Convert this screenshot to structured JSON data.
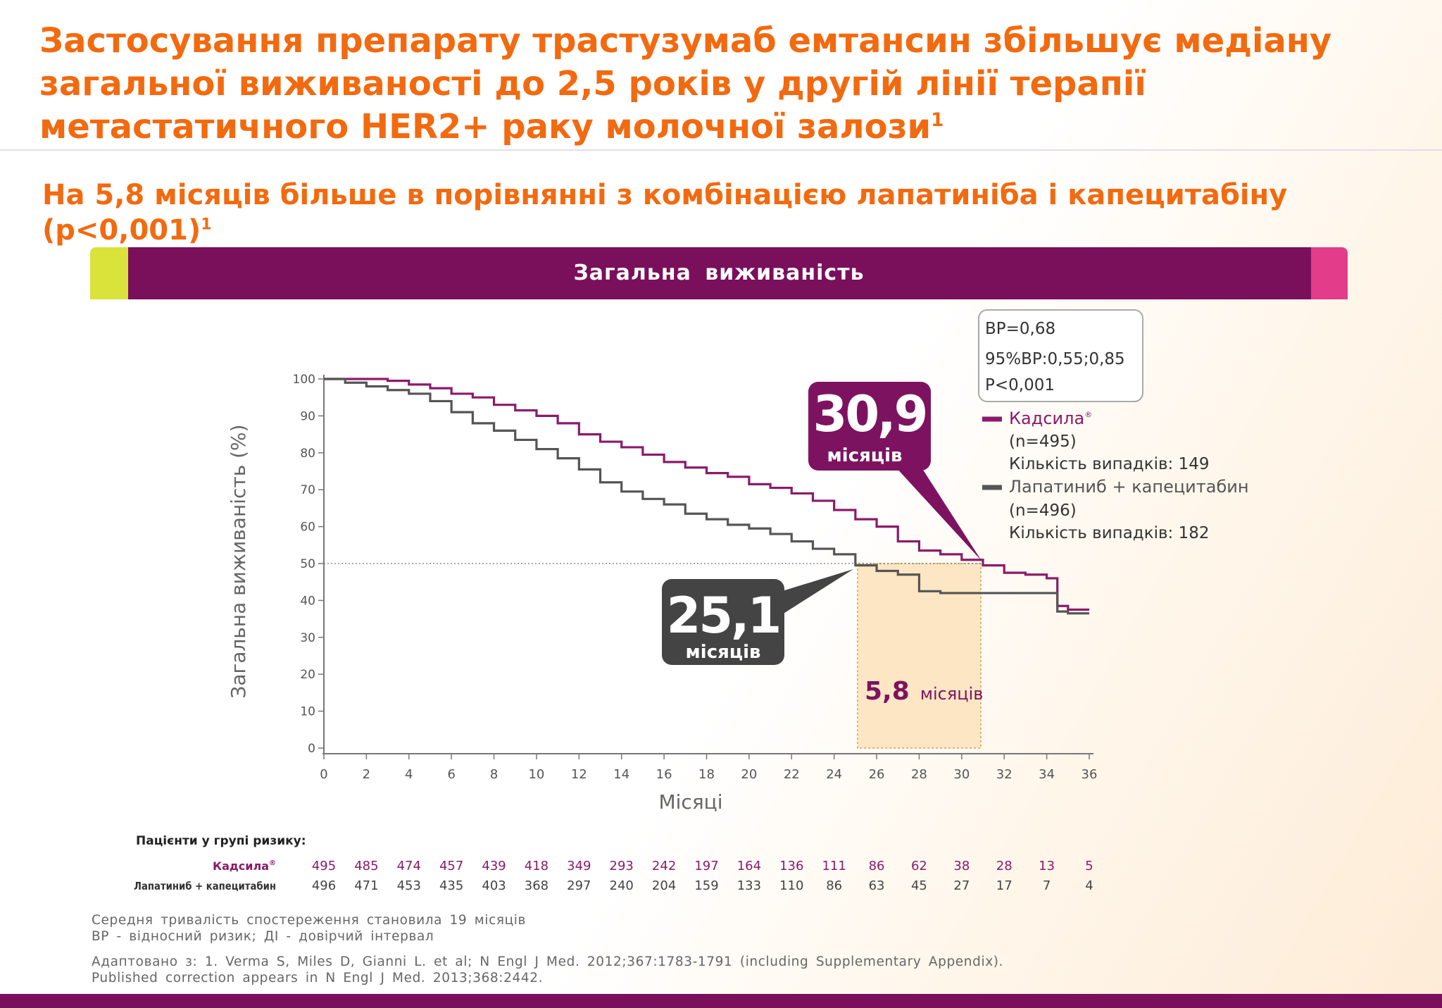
{
  "header": {
    "title_lines": [
      "Застосування препарату трастузумаб емтансин збільшує медіану",
      "загальної виживаності до 2,5 років у другій лінії терапії",
      "метастатичного HER2+ раку молочної залози"
    ],
    "title_sup": "1",
    "subtitle": "На 5,8 місяців більше в порівнянні з комбінацією лапатиніба і капецитабіну (p<0,001)",
    "subtitle_sup": "1"
  },
  "banner": {
    "label": "Загальна  виживаність"
  },
  "colors": {
    "orange": "#f26a10",
    "purple": "#8b1a6b",
    "grey": "#555555",
    "banner": "#7a0f5c",
    "highlight": "#fde6c4"
  },
  "stats_box": {
    "lines": [
      "ВР=0,68",
      "95%ВР:0,55;0,85",
      "P<0,001"
    ]
  },
  "callouts": {
    "kadsyla": {
      "value": "30,9",
      "unit": "місяців"
    },
    "lapatinib": {
      "value": "25,1",
      "unit": "місяців"
    },
    "difference": {
      "value": "5,8",
      "unit": "місяців"
    }
  },
  "chart_data": {
    "type": "line",
    "xlabel": "Місяці",
    "ylabel": "Загальна  виживаність  (%)",
    "xlim": [
      0,
      36
    ],
    "ylim": [
      0,
      100
    ],
    "x_ticks": [
      0,
      2,
      4,
      6,
      8,
      10,
      12,
      14,
      16,
      18,
      20,
      22,
      24,
      26,
      28,
      30,
      32,
      34,
      36
    ],
    "y_ticks": [
      0,
      10,
      20,
      30,
      40,
      50,
      60,
      70,
      80,
      90,
      100
    ],
    "reference_line_y": 50,
    "highlight_x_range": [
      25.1,
      30.9
    ],
    "legend_position": "right",
    "series": [
      {
        "name": "Кадсила",
        "legend_sup": "®",
        "legend_n": "(n=495)",
        "legend_events": "Кількість  випадків:  149",
        "color": "#8b1a6b",
        "x": [
          0,
          1,
          2,
          3,
          4,
          5,
          6,
          7,
          8,
          9,
          10,
          11,
          12,
          13,
          14,
          15,
          16,
          17,
          18,
          19,
          20,
          21,
          22,
          23,
          24,
          25,
          26,
          27,
          28,
          29,
          30,
          31,
          32,
          33,
          34,
          34.5,
          35,
          36
        ],
        "y": [
          100,
          100,
          100,
          99.5,
          98.5,
          97.5,
          96,
          95,
          93,
          91.5,
          90,
          88,
          85,
          83,
          81.5,
          79.5,
          77.5,
          76,
          74.5,
          73.5,
          71.5,
          70.5,
          69,
          67,
          64.5,
          62,
          60,
          56,
          53.5,
          52.5,
          51,
          49.5,
          47.5,
          47,
          46,
          38.5,
          37.5,
          37.5
        ]
      },
      {
        "name": "Лапатиниб  +  капецитабин",
        "legend_n": "(n=496)",
        "legend_events": "Кількість  випадків:  182",
        "color": "#555555",
        "x": [
          0,
          1,
          2,
          3,
          4,
          5,
          6,
          7,
          8,
          9,
          10,
          11,
          12,
          13,
          14,
          15,
          16,
          17,
          18,
          19,
          20,
          21,
          22,
          23,
          24,
          25,
          26,
          27,
          28,
          29,
          30,
          31,
          32,
          33,
          34,
          34.5,
          35,
          36
        ],
        "y": [
          100,
          99,
          98,
          97,
          96,
          94,
          91,
          88,
          86,
          83.5,
          81,
          78.5,
          75.5,
          72,
          69.5,
          67.5,
          66,
          63.5,
          62,
          60.5,
          59.5,
          58,
          56,
          54,
          52.5,
          49.5,
          48,
          47,
          42.5,
          42,
          42,
          42,
          42,
          42,
          42,
          37,
          36.5,
          36.5
        ]
      }
    ]
  },
  "risk_table": {
    "title": "Пацієнти  у  групі  ризику:",
    "rows": [
      {
        "label": "Кадсила",
        "label_sup": "®",
        "values": [
          "495",
          "485",
          "474",
          "457",
          "439",
          "418",
          "349",
          "293",
          "242",
          "197",
          "164",
          "136",
          "111",
          "86",
          "62",
          "38",
          "28",
          "13",
          "5"
        ]
      },
      {
        "label": "Лапатиниб + капецитабин",
        "values": [
          "496",
          "471",
          "453",
          "435",
          "403",
          "368",
          "297",
          "240",
          "204",
          "159",
          "133",
          "110",
          "86",
          "63",
          "45",
          "27",
          "17",
          "7",
          "4"
        ]
      }
    ]
  },
  "footnotes": {
    "line1": "Середня  тривалість  спостереження  становила  19  місяців",
    "line2": "ВР  -  відносний  ризик;  ДІ  -  довірчий  інтервал",
    "line3": "Адаптовано  з:  1.  Verma  S,  Miles  D,  Gianni  L.  et  al;  N  Engl  J  Med.  2012;367:1783-1791  (including  Supplementary  Appendix).",
    "line4": "Published  correction  appears  in  N  Engl  J  Med.  2013;368:2442."
  }
}
